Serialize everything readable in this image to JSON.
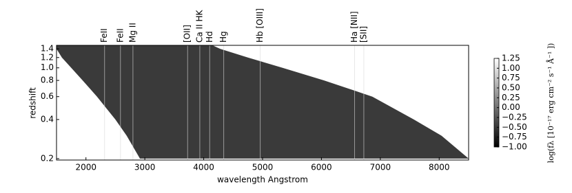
{
  "chart_data": {
    "type": "heatmap",
    "x_label": "wavelength Angstrom",
    "y_label": "redshift",
    "xlim": [
      1500,
      8500
    ],
    "xticks": [
      2000,
      3000,
      4000,
      5000,
      6000,
      7000,
      8000
    ],
    "ylim": [
      0.195,
      1.49
    ],
    "y_log": true,
    "yticks": [
      0.2,
      0.4,
      0.6,
      0.8,
      1.0,
      1.2,
      1.4
    ],
    "ytick_labels": [
      "0.2",
      "0.4",
      "0.6",
      "0.8",
      "1.0",
      "1.2",
      "1.4"
    ],
    "coverage": {
      "z": [
        0.2,
        0.3,
        0.4,
        0.6,
        0.8,
        1.0,
        1.2,
        1.4,
        1.49
      ],
      "lambda_min": [
        2917,
        2692,
        2500,
        2188,
        1944,
        1750,
        1591,
        1500,
        1500
      ],
      "lambda_max": [
        8500,
        8040,
        7570,
        6865,
        6045,
        5340,
        4750,
        4280,
        4150
      ],
      "color": "#3a3a3a"
    },
    "lines": [
      {
        "name": "FeII",
        "wavelength": 2316
      },
      {
        "name": "FeII",
        "wavelength": 2586
      },
      {
        "name": "Mg II",
        "wavelength": 2798
      },
      {
        "name": "[OII]",
        "wavelength": 3727
      },
      {
        "name": "Ca II HK",
        "wavelength": 3934
      },
      {
        "name": "Hd",
        "wavelength": 4102
      },
      {
        "name": "Hg",
        "wavelength": 4340
      },
      {
        "name": "Hb [OIII]",
        "wavelength": 4960
      },
      {
        "name": "Ha [NII]",
        "wavelength": 6563
      },
      {
        "name": "[SII]",
        "wavelength": 6720
      }
    ],
    "line_color": "#d8d8d8",
    "colorbar": {
      "label": "log(fλ [10⁻¹⁷ erg cm⁻² s⁻¹ Å⁻¹ ])",
      "clim": [
        -1.0,
        1.25
      ],
      "cmap": [
        "#000000",
        "#ffffff"
      ],
      "ticks": [
        {
          "value": 1.25,
          "label": "1.25"
        },
        {
          "value": 1.0,
          "label": "1.00"
        },
        {
          "value": 0.75,
          "label": "0.75"
        },
        {
          "value": 0.5,
          "label": "0.50"
        },
        {
          "value": 0.25,
          "label": "0.25"
        },
        {
          "value": 0.0,
          "label": "0.00"
        },
        {
          "value": -0.25,
          "label": "−0.25"
        },
        {
          "value": -0.5,
          "label": "−0.50"
        },
        {
          "value": -0.75,
          "label": "−0.75"
        },
        {
          "value": -1.0,
          "label": "−1.00"
        }
      ]
    }
  }
}
